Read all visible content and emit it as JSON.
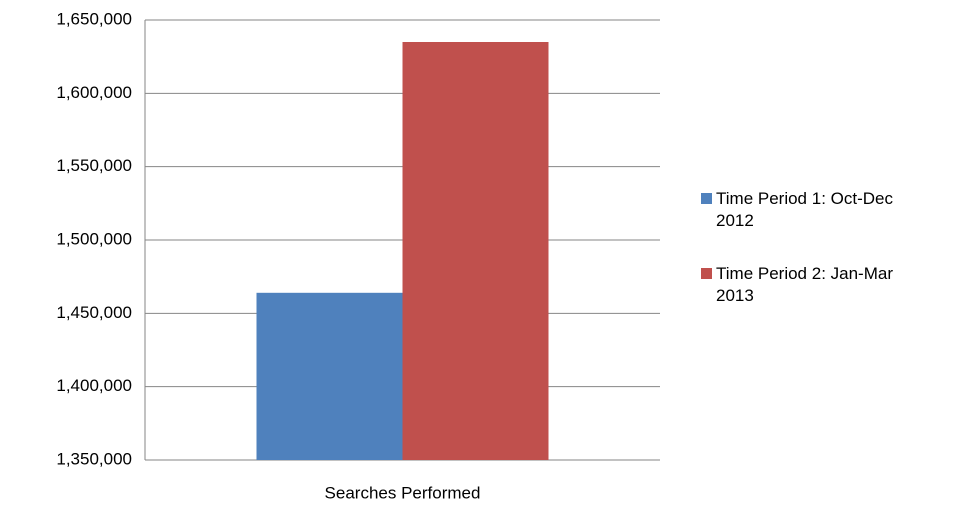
{
  "chart_data": {
    "type": "bar",
    "categories": [
      "Searches Performed"
    ],
    "series": [
      {
        "name": "Time Period 1: Oct-Dec 2012",
        "color": "#4f81bd",
        "values": [
          1464000
        ]
      },
      {
        "name": "Time Period 2: Jan-Mar 2013",
        "color": "#c0504d",
        "values": [
          1635000
        ]
      }
    ],
    "ylim": [
      1350000,
      1650000
    ],
    "yticks": [
      {
        "value": 1350000,
        "label": "1,350,000"
      },
      {
        "value": 1400000,
        "label": "1,400,000"
      },
      {
        "value": 1450000,
        "label": "1,450,000"
      },
      {
        "value": 1500000,
        "label": "1,500,000"
      },
      {
        "value": 1550000,
        "label": "1,550,000"
      },
      {
        "value": 1600000,
        "label": "1,600,000"
      },
      {
        "value": 1650000,
        "label": "1,650,000"
      }
    ],
    "grid": true,
    "legend": "right"
  }
}
